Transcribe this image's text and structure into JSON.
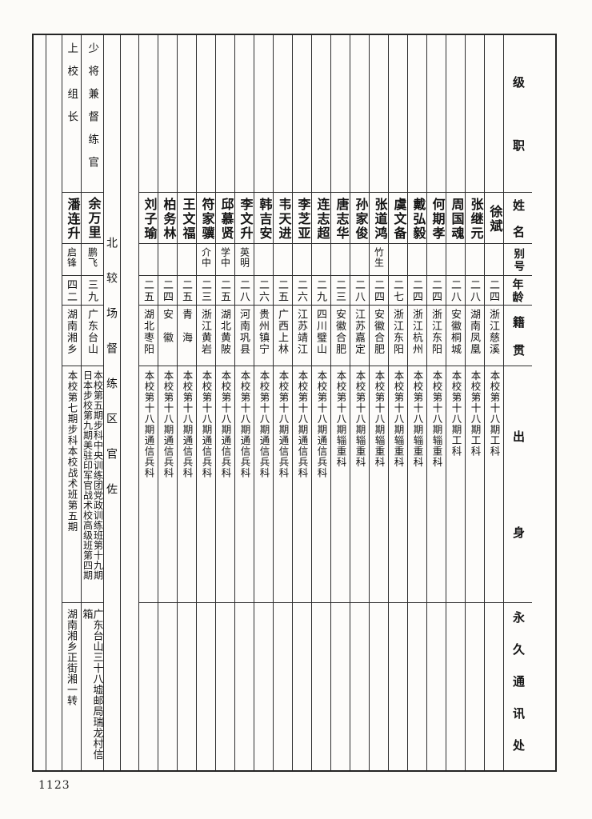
{
  "page": {
    "number": "1123"
  },
  "table": {
    "headers": {
      "rank": "级职",
      "name": "姓名",
      "alias": "别号",
      "age": "年龄",
      "native_place": "籍贯",
      "origin": "出身",
      "address": "永久通讯处"
    },
    "section_label": "北较场督练区官佐",
    "people": [
      {
        "rank": "",
        "name": "徐斌",
        "alias": "",
        "age": "二四",
        "native_place": "浙江慈溪",
        "origin": "本校第十八期工科",
        "address": ""
      },
      {
        "rank": "",
        "name": "张继元",
        "alias": "",
        "age": "二八",
        "native_place": "湖南凤凰",
        "origin": "本校第十八期工科",
        "address": ""
      },
      {
        "rank": "",
        "name": "周国魂",
        "alias": "",
        "age": "二八",
        "native_place": "安徽桐城",
        "origin": "本校第十八期工科",
        "address": ""
      },
      {
        "rank": "",
        "name": "何期孝",
        "alias": "",
        "age": "二四",
        "native_place": "浙江东阳",
        "origin": "本校第十八期辎重科",
        "address": ""
      },
      {
        "rank": "",
        "name": "戴弘毅",
        "alias": "",
        "age": "二四",
        "native_place": "浙江杭州",
        "origin": "本校第十八期辎重科",
        "address": ""
      },
      {
        "rank": "",
        "name": "虞文备",
        "alias": "",
        "age": "二七",
        "native_place": "浙江东阳",
        "origin": "本校第十八期辎重科",
        "address": ""
      },
      {
        "rank": "",
        "name": "张道鸿",
        "alias": "竹生",
        "age": "二四",
        "native_place": "安徽合肥",
        "origin": "本校第十八期辎重科",
        "address": ""
      },
      {
        "rank": "",
        "name": "孙家俊",
        "alias": "",
        "age": "二八",
        "native_place": "江苏嘉定",
        "origin": "本校第十八期辎重科",
        "address": ""
      },
      {
        "rank": "",
        "name": "唐志华",
        "alias": "",
        "age": "二三",
        "native_place": "安徽合肥",
        "origin": "本校第十八期辎重科",
        "address": ""
      },
      {
        "rank": "",
        "name": "连志超",
        "alias": "",
        "age": "二九",
        "native_place": "四川璧山",
        "origin": "本校第十八期通信兵科",
        "address": ""
      },
      {
        "rank": "",
        "name": "李芝亚",
        "alias": "",
        "age": "二六",
        "native_place": "江苏靖江",
        "origin": "本校第十八期通信兵科",
        "address": ""
      },
      {
        "rank": "",
        "name": "韦天进",
        "alias": "",
        "age": "二五",
        "native_place": "广西上林",
        "origin": "本校第十八期通信兵科",
        "address": ""
      },
      {
        "rank": "",
        "name": "韩吉安",
        "alias": "",
        "age": "二六",
        "native_place": "贵州镇宁",
        "origin": "本校第十八期通信兵科",
        "address": ""
      },
      {
        "rank": "",
        "name": "李文升",
        "alias": "英明",
        "age": "二八",
        "native_place": "河南巩县",
        "origin": "本校第十八期通信兵科",
        "address": ""
      },
      {
        "rank": "",
        "name": "邱慕贤",
        "alias": "学中",
        "age": "二五",
        "native_place": "湖北黄陂",
        "origin": "本校第十八期通信兵科",
        "address": ""
      },
      {
        "rank": "",
        "name": "符家骥",
        "alias": "介中",
        "age": "二三",
        "native_place": "浙江黄岩",
        "origin": "本校第十八期通信兵科",
        "address": ""
      },
      {
        "rank": "",
        "name": "王文福",
        "alias": "",
        "age": "二五",
        "native_place": "青　海",
        "origin": "本校第十八期通信兵科",
        "address": ""
      },
      {
        "rank": "",
        "name": "柏务林",
        "alias": "",
        "age": "二四",
        "native_place": "安　徽",
        "origin": "本校第十八期通信兵科",
        "address": ""
      },
      {
        "rank": "",
        "name": "刘子瑜",
        "alias": "",
        "age": "二五",
        "native_place": "湖北枣阳",
        "origin": "本校第十八期通信兵科",
        "address": ""
      },
      {
        "rank": "少将兼督练官",
        "name": "余万里",
        "alias": "鹏飞",
        "age": "三九",
        "native_place": "广东台山",
        "origin": "本校第五期步科中央训练团党政训练班第十九期\n日本步校第九期美驻印军官战术校高级班第四期",
        "address": "广东台山三十八墟邮局瑞龙村信箱"
      },
      {
        "rank": "上校组长",
        "name": "潘连升",
        "alias": "启锋",
        "age": "四二",
        "native_place": "湖南湘乡",
        "origin": "本校第七期步科本校战术班第五期",
        "address": "湖南湘乡正街湘一转"
      }
    ]
  }
}
